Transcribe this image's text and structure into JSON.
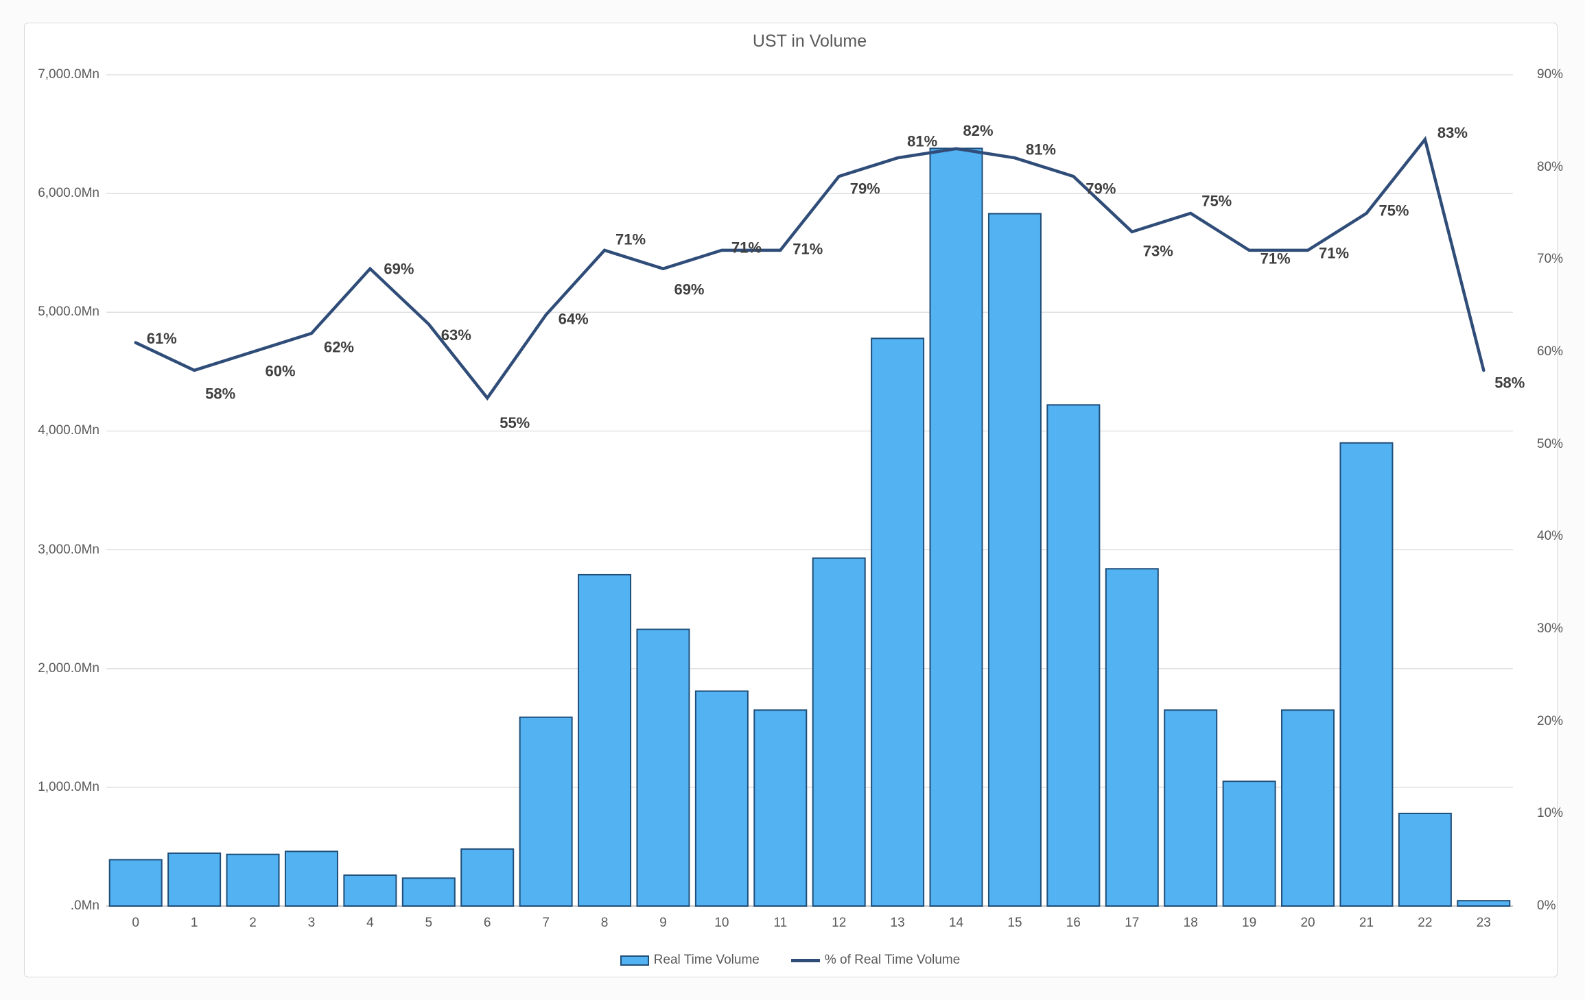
{
  "title": "UST in Volume",
  "legend": {
    "items": [
      {
        "label": "Real Time Volume",
        "swatch": "bar-swatch"
      },
      {
        "label": "% of Real Time Volume",
        "swatch": "line-swatch"
      }
    ]
  },
  "colors": {
    "bar_fill": "#53B2F2",
    "bar_border": "#1F4E79",
    "line": "#2F4D78",
    "grid": "#D9D9D9",
    "axis_line": "#A6A6A6",
    "axis_text": "#595959",
    "title_text": "#595959",
    "point_label_text": "#3F3F3F",
    "frame_border": "#D9D9D9"
  },
  "chart_data": {
    "type": "combo-bar-line",
    "title": "UST in Volume",
    "categories": [
      "0",
      "1",
      "2",
      "3",
      "4",
      "5",
      "6",
      "7",
      "8",
      "9",
      "10",
      "11",
      "12",
      "13",
      "14",
      "15",
      "16",
      "17",
      "18",
      "19",
      "20",
      "21",
      "22",
      "23"
    ],
    "series": [
      {
        "name": "Real Time Volume",
        "chart": "bar",
        "axis": "left",
        "unit": "Mn",
        "values": [
          390,
          445,
          435,
          460,
          260,
          235,
          480,
          1590,
          2790,
          2330,
          1810,
          1650,
          2930,
          4780,
          6380,
          5830,
          4220,
          2840,
          1650,
          1050,
          1650,
          3900,
          780,
          45
        ]
      },
      {
        "name": "% of Real Time Volume",
        "chart": "line",
        "axis": "right",
        "unit": "%",
        "values": [
          61,
          58,
          60,
          62,
          69,
          63,
          55,
          64,
          71,
          69,
          71,
          71,
          79,
          81,
          82,
          81,
          79,
          73,
          75,
          71,
          71,
          75,
          83,
          58
        ],
        "point_labels": [
          "61%",
          "58%",
          "60%",
          "62%",
          "69%",
          "63%",
          "55%",
          "64%",
          "71%",
          "69%",
          "71%",
          "71%",
          "79%",
          "81%",
          "82%",
          "81%",
          "79%",
          "73%",
          "75%",
          "71%",
          "71%",
          "75%",
          "83%",
          "58%"
        ]
      }
    ],
    "left_axis": {
      "min": 0,
      "max": 7000,
      "unit": "Mn",
      "ticks": [
        "7,000.0Mn",
        "6,000.0Mn",
        "5,000.0Mn",
        "4,000.0Mn",
        "3,000.0Mn",
        "2,000.0Mn",
        "1,000.0Mn",
        ".0Mn"
      ]
    },
    "right_axis": {
      "min": 0,
      "max": 90,
      "unit": "%",
      "ticks": [
        "90%",
        "80%",
        "70%",
        "60%",
        "50%",
        "40%",
        "30%",
        "20%",
        "10%",
        "0%"
      ]
    },
    "x_axis": {
      "ticks": [
        "0",
        "1",
        "2",
        "3",
        "4",
        "5",
        "6",
        "7",
        "8",
        "9",
        "10",
        "11",
        "12",
        "13",
        "14",
        "15",
        "16",
        "17",
        "18",
        "19",
        "20",
        "21",
        "22",
        "23"
      ]
    },
    "grid": true,
    "legend_position": "bottom"
  }
}
